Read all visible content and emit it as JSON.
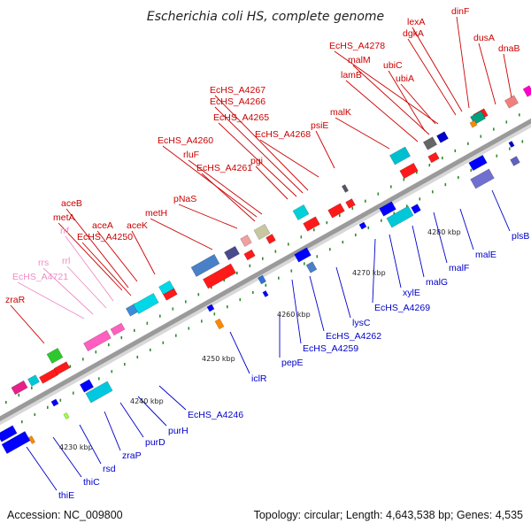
{
  "title": "Escherichia coli HS, complete genome",
  "accession": "Accession: NC_009800",
  "summary": "Topology: circular; Length: 4,643,538 bp; Genes: 4,535",
  "colors": {
    "forward_label": "#cc0000",
    "reverse_label": "#0000cc",
    "rna_label": "#f08cc8",
    "backbone": "#999999",
    "tick": "#2e8b2e"
  },
  "scale_labels": [
    "4230 kbp",
    "4240 kbp",
    "4250 kbp",
    "4260 kbp",
    "4270 kbp",
    "4280 kbp"
  ],
  "upper_labels": [
    {
      "text": "dinF",
      "kind": "forward"
    },
    {
      "text": "lexA",
      "kind": "forward"
    },
    {
      "text": "dgkA",
      "kind": "forward"
    },
    {
      "text": "dnaB",
      "kind": "forward"
    },
    {
      "text": "dusA",
      "kind": "forward"
    },
    {
      "text": "EcHS_A4278",
      "kind": "forward"
    },
    {
      "text": "malM",
      "kind": "forward"
    },
    {
      "text": "ubiC",
      "kind": "forward"
    },
    {
      "text": "ubiA",
      "kind": "forward"
    },
    {
      "text": "lamB",
      "kind": "forward"
    },
    {
      "text": "EcHS_A4267",
      "kind": "forward"
    },
    {
      "text": "EcHS_A4266",
      "kind": "forward"
    },
    {
      "text": "malK",
      "kind": "forward"
    },
    {
      "text": "EcHS_A4265",
      "kind": "forward"
    },
    {
      "text": "psiE",
      "kind": "forward"
    },
    {
      "text": "EcHS_A4268",
      "kind": "forward"
    },
    {
      "text": "EcHS_A4260",
      "kind": "forward"
    },
    {
      "text": "rluF",
      "kind": "forward"
    },
    {
      "text": "pgi",
      "kind": "forward"
    },
    {
      "text": "EcHS_A4261",
      "kind": "forward"
    },
    {
      "text": "pNaS",
      "kind": "forward"
    },
    {
      "text": "aceB",
      "kind": "forward"
    },
    {
      "text": "metH",
      "kind": "forward"
    },
    {
      "text": "metA",
      "kind": "forward"
    },
    {
      "text": "aceA",
      "kind": "forward"
    },
    {
      "text": "aceK",
      "kind": "forward"
    },
    {
      "text": "rrf",
      "kind": "rna"
    },
    {
      "text": "EcHS_A4250",
      "kind": "forward"
    },
    {
      "text": "rrs",
      "kind": "rna"
    },
    {
      "text": "rrl",
      "kind": "rna"
    },
    {
      "text": "EcHS_A4721",
      "kind": "rna"
    },
    {
      "text": "zraR",
      "kind": "forward"
    }
  ],
  "lower_labels": [
    {
      "text": "plsB",
      "kind": "reverse"
    },
    {
      "text": "malE",
      "kind": "reverse"
    },
    {
      "text": "malF",
      "kind": "reverse"
    },
    {
      "text": "malG",
      "kind": "reverse"
    },
    {
      "text": "xylE",
      "kind": "reverse"
    },
    {
      "text": "EcHS_A4269",
      "kind": "reverse"
    },
    {
      "text": "lysC",
      "kind": "reverse"
    },
    {
      "text": "EcHS_A4262",
      "kind": "reverse"
    },
    {
      "text": "EcHS_A4259",
      "kind": "reverse"
    },
    {
      "text": "pepE",
      "kind": "reverse"
    },
    {
      "text": "iclR",
      "kind": "reverse"
    },
    {
      "text": "EcHS_A4246",
      "kind": "reverse"
    },
    {
      "text": "purH",
      "kind": "reverse"
    },
    {
      "text": "purD",
      "kind": "reverse"
    },
    {
      "text": "zraP",
      "kind": "reverse"
    },
    {
      "text": "rsd",
      "kind": "reverse"
    },
    {
      "text": "thiC",
      "kind": "reverse"
    },
    {
      "text": "thiE",
      "kind": "reverse"
    }
  ]
}
